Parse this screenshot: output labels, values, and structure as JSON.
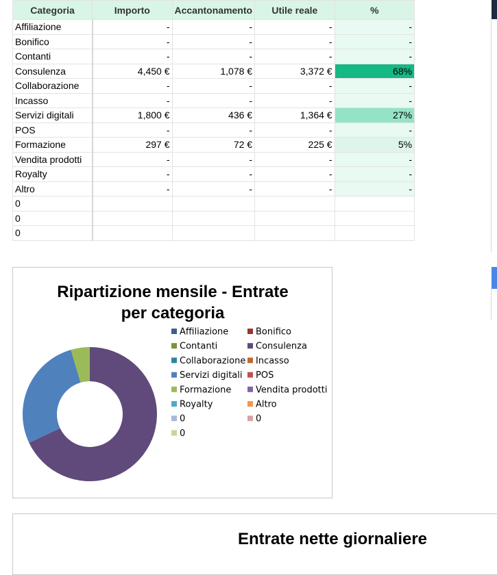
{
  "table": {
    "headers": [
      "Categoria",
      "Importo",
      "Accantonamento",
      "Utile reale",
      "%"
    ],
    "rows": [
      [
        "Affiliazione",
        "-",
        "-",
        "-",
        "-"
      ],
      [
        "Bonifico",
        "-",
        "-",
        "-",
        "-"
      ],
      [
        "Contanti",
        "-",
        "-",
        "-",
        "-"
      ],
      [
        "Consulenza",
        "4,450 €",
        "1,078 €",
        "3,372 €",
        "68%"
      ],
      [
        "Collaborazione",
        "-",
        "-",
        "-",
        "-"
      ],
      [
        "Incasso",
        "-",
        "-",
        "-",
        "-"
      ],
      [
        "Servizi digitali",
        "1,800 €",
        "436 €",
        "1,364 €",
        "27%"
      ],
      [
        "POS",
        "-",
        "-",
        "-",
        "-"
      ],
      [
        "Formazione",
        "297 €",
        "72 €",
        "225 €",
        "5%"
      ],
      [
        "Vendita prodotti",
        "-",
        "-",
        "-",
        "-"
      ],
      [
        "Royalty",
        "-",
        "-",
        "-",
        "-"
      ],
      [
        "Altro",
        "-",
        "-",
        "-",
        "-"
      ],
      [
        "0"
      ],
      [
        "0"
      ],
      [
        "0"
      ]
    ]
  },
  "chart_data": [
    {
      "type": "pie",
      "donut": true,
      "title": "Ripartizione mensile - Entrate per categoria",
      "categories": [
        "Affiliazione",
        "Bonifico",
        "Contanti",
        "Consulenza",
        "Collaborazione",
        "Incasso",
        "Servizi digitali",
        "POS",
        "Formazione",
        "Vendita prodotti",
        "Royalty",
        "Altro",
        "0",
        "0",
        "0"
      ],
      "values": [
        0,
        0,
        0,
        4450,
        0,
        0,
        1800,
        0,
        297,
        0,
        0,
        0,
        0,
        0,
        0
      ],
      "colors": [
        "#3b5f8e",
        "#953735",
        "#77933c",
        "#604a7b",
        "#31859c",
        "#c0692c",
        "#4f81bd",
        "#c0504d",
        "#9bbb59",
        "#8064a2",
        "#4bacc6",
        "#f79646",
        "#a7b9d8",
        "#d9a3a2",
        "#c3d69b"
      ],
      "legend": "right"
    },
    {
      "type": "line",
      "title": "Entrate nette giornaliere"
    }
  ]
}
